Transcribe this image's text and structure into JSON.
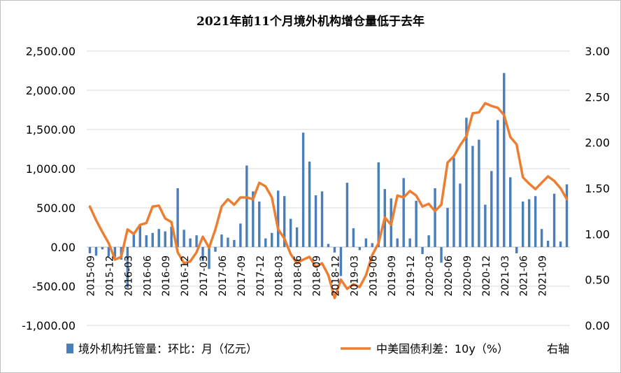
{
  "chart_data": {
    "type": "bar+line",
    "title": "2021年前11个月境外机构增仓量低于去年",
    "left_axis": {
      "ticks": [
        "2,500.00",
        "2,000.00",
        "1,500.00",
        "1,000.00",
        "500.00",
        "0.00",
        "-500.00",
        "-1,000.00"
      ],
      "range": [
        -1000,
        2500
      ]
    },
    "right_axis": {
      "ticks": [
        "3.00",
        "2.50",
        "2.00",
        "1.50",
        "1.00",
        "0.50",
        "0.00"
      ],
      "range": [
        0,
        3
      ]
    },
    "x_tick_labels": [
      "2015-09",
      "2015-12",
      "2016-03",
      "2016-06",
      "2016-09",
      "2016-12",
      "2017-03",
      "2017-06",
      "2017-09",
      "2017-12",
      "2018-03",
      "2018-06",
      "2018-09",
      "2018-12",
      "2019-03",
      "2019-06",
      "2019-09",
      "2019-12",
      "2020-03",
      "2020-06",
      "2020-09",
      "2020-12",
      "2021-03",
      "2021-06",
      "2021-09"
    ],
    "months_start": "2015-09",
    "series": [
      {
        "name": "境外机构托管量：环比：月（亿元）",
        "type": "bar",
        "axis": "left",
        "color": "#4a7ebb",
        "values": [
          -80,
          -110,
          -30,
          -120,
          -130,
          -160,
          -520,
          180,
          270,
          150,
          180,
          230,
          200,
          260,
          750,
          220,
          110,
          150,
          -180,
          -280,
          -60,
          160,
          120,
          90,
          300,
          1040,
          710,
          580,
          110,
          180,
          720,
          650,
          360,
          250,
          1460,
          1090,
          660,
          710,
          40,
          -70,
          -370,
          820,
          240,
          -40,
          110,
          50,
          1080,
          740,
          620,
          110,
          880,
          110,
          590,
          -90,
          150,
          750,
          -200,
          500,
          1140,
          810,
          1650,
          1290,
          1370,
          540,
          970,
          1620,
          2220,
          890,
          -80,
          580,
          610,
          650,
          230,
          80,
          680,
          70,
          800
        ]
      },
      {
        "name": "中美国债利差：10y（%）",
        "axis_note": "右轴",
        "type": "line",
        "axis": "right",
        "color": "#ed7d31",
        "values": [
          1.3,
          1.15,
          1.02,
          0.9,
          0.72,
          0.75,
          1.05,
          1.0,
          1.1,
          1.12,
          1.3,
          1.31,
          1.17,
          1.13,
          0.8,
          0.68,
          0.7,
          0.8,
          0.97,
          0.85,
          1.05,
          1.3,
          1.38,
          1.32,
          1.4,
          1.4,
          1.38,
          1.56,
          1.52,
          1.4,
          1.05,
          0.95,
          0.78,
          0.68,
          0.72,
          0.75,
          0.64,
          0.68,
          0.55,
          0.3,
          0.5,
          0.4,
          0.45,
          0.42,
          0.55,
          0.77,
          0.9,
          1.18,
          1.1,
          1.42,
          1.4,
          1.47,
          1.42,
          1.3,
          1.33,
          1.25,
          1.32,
          1.78,
          1.85,
          1.97,
          2.07,
          2.32,
          2.33,
          2.43,
          2.4,
          2.38,
          2.3,
          2.06,
          1.98,
          1.62,
          1.55,
          1.49,
          1.56,
          1.63,
          1.58,
          1.5,
          1.38
        ]
      }
    ],
    "legend": {
      "position": "bottom"
    }
  }
}
